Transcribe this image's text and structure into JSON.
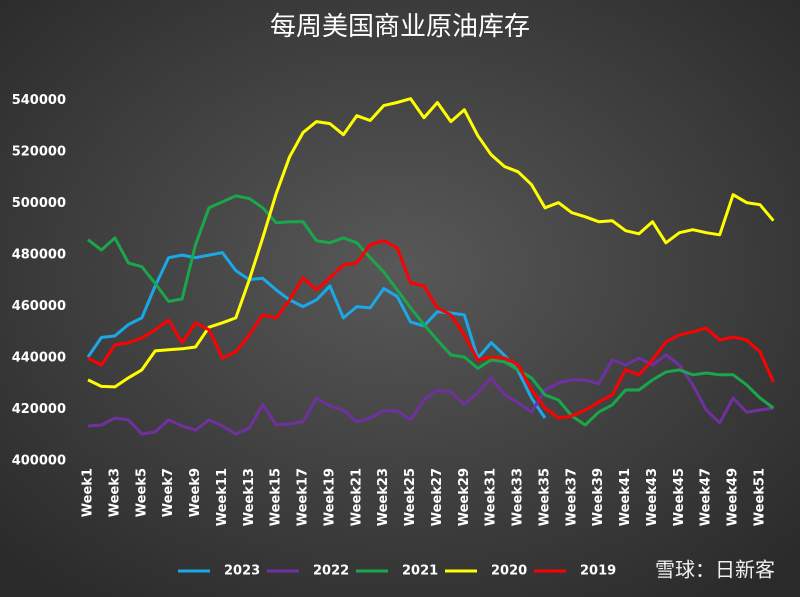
{
  "chart_data": {
    "type": "line",
    "title": "每周美国商业原油库存",
    "watermark": "雪球：日新客",
    "categories": [
      "Week1",
      null,
      "Week3",
      null,
      "Week5",
      null,
      "Week7",
      null,
      "Week9",
      null,
      "Week11",
      null,
      "Week13",
      null,
      "Week15",
      null,
      "Week17",
      null,
      "Week19",
      null,
      "Week21",
      null,
      "Week23",
      null,
      "Week25",
      null,
      "Week27",
      null,
      "Week29",
      null,
      "Week31",
      null,
      "Week33",
      null,
      "Week35",
      null,
      "Week37",
      null,
      "Week39",
      null,
      "Week41",
      null,
      "Week43",
      null,
      "Week45",
      null,
      "Week47",
      null,
      "Week49",
      null,
      "Week51",
      null
    ],
    "ylim": [
      400000,
      550000
    ],
    "yticks": [
      400000,
      420000,
      440000,
      460000,
      480000,
      500000,
      520000,
      540000
    ],
    "grid": false,
    "legend": "bottom",
    "series": [
      {
        "name": "2023",
        "color": "#1aa8e6",
        "values": [
          440400,
          448000,
          448600,
          453000,
          455600,
          468000,
          479000,
          480000,
          479000,
          480000,
          481000,
          474000,
          470500,
          471000,
          466500,
          462600,
          460000,
          462600,
          468000,
          455600,
          460000,
          459500,
          467000,
          464000,
          454000,
          452500,
          458000,
          457500,
          456800,
          440000,
          446000,
          441000,
          435000,
          424500,
          416700,
          null,
          null,
          null,
          null,
          null,
          null,
          null,
          null,
          null,
          null,
          null,
          null,
          null,
          null,
          null,
          null,
          null
        ]
      },
      {
        "name": "2022",
        "color": "#7030a0",
        "values": [
          413600,
          414000,
          416700,
          416000,
          410500,
          411300,
          416000,
          413600,
          412000,
          416000,
          413600,
          410500,
          412800,
          422000,
          414000,
          414400,
          415200,
          424500,
          421400,
          419800,
          415200,
          416700,
          419500,
          419500,
          416000,
          423700,
          427600,
          426800,
          422000,
          426500,
          432300,
          425700,
          422600,
          419000,
          427600,
          430300,
          431500,
          431500,
          430000,
          439300,
          437300,
          440000,
          437300,
          441200,
          437300,
          429600,
          419800,
          414800,
          424500,
          419000,
          419800,
          420600
        ]
      },
      {
        "name": "2021",
        "color": "#1aa64a",
        "values": [
          486000,
          482000,
          486700,
          477000,
          475500,
          469000,
          462000,
          463000,
          484000,
          498400,
          500700,
          503000,
          502000,
          498400,
          492600,
          493000,
          493000,
          485600,
          484800,
          486700,
          484800,
          479000,
          473500,
          466500,
          459500,
          453000,
          447000,
          441200,
          440400,
          436000,
          439300,
          438500,
          435400,
          432300,
          425700,
          423700,
          417500,
          414000,
          419000,
          421800,
          427600,
          427600,
          431500,
          434600,
          435400,
          433500,
          434200,
          433500,
          433500,
          429600,
          424500,
          420600
        ]
      },
      {
        "name": "2020",
        "color": "#ffff00",
        "values": [
          431500,
          429000,
          428800,
          432300,
          435400,
          442800,
          443200,
          443600,
          444300,
          452000,
          453700,
          455600,
          470400,
          486700,
          503900,
          518200,
          527600,
          531900,
          531100,
          526800,
          534200,
          532300,
          538100,
          539300,
          540800,
          533400,
          539300,
          531900,
          536500,
          526400,
          519000,
          514400,
          512400,
          507400,
          498400,
          500400,
          496500,
          494900,
          493000,
          493400,
          489500,
          488300,
          493000,
          484800,
          488700,
          489900,
          488700,
          487900,
          503500,
          500400,
          499600,
          493400
        ]
      },
      {
        "name": "2019",
        "color": "#ff0000",
        "values": [
          440000,
          437300,
          445100,
          445900,
          447800,
          451000,
          454800,
          445900,
          453700,
          451000,
          440000,
          442400,
          449000,
          456800,
          455600,
          462600,
          471200,
          466500,
          471200,
          476200,
          477000,
          484000,
          485600,
          482900,
          469200,
          468000,
          459500,
          456800,
          449000,
          439300,
          440400,
          440000,
          437300,
          427600,
          420600,
          416700,
          417500,
          419800,
          422900,
          425700,
          435400,
          433500,
          439300,
          446300,
          449000,
          450200,
          451700,
          447000,
          448200,
          447000,
          442400,
          430700
        ]
      }
    ]
  }
}
